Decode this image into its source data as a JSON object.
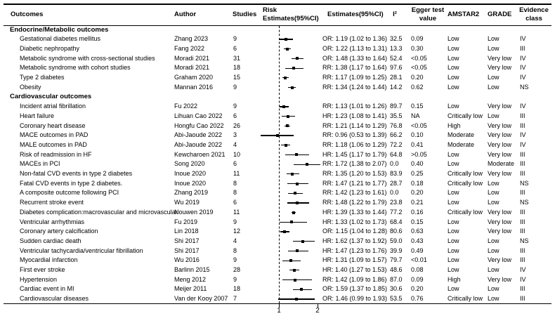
{
  "table": {
    "columns": {
      "outcomes": "Outcomes",
      "author": "Author",
      "studies": "Studies",
      "risk_line1": "Risk",
      "risk_line2": "Estimates(95%CI)",
      "estimates": "Estimates(95%CI)",
      "i2": "I²",
      "egger_line1": "Egger test",
      "egger_line2": "value",
      "amstar2": "AMSTAR2",
      "grade": "GRADE",
      "evidence_line1": "Evidence",
      "evidence_line2": "class"
    },
    "axis": {
      "tick_labels": [
        "1",
        "2"
      ],
      "tick_values": [
        1,
        2
      ],
      "reference_value": 1
    },
    "sections": [
      {
        "title": "Endocrine/Metabolic outcomes",
        "rows": [
          {
            "outcome": "Gestational diabetes mellitus",
            "author": "Zhang 2023",
            "studies": "9",
            "estimate": "OR: 1.19 (1.02 to 1.36)",
            "point": 1.19,
            "low": 1.02,
            "high": 1.36,
            "i2": "32.5",
            "egger": "0.09",
            "amstar2": "Low",
            "grade": "Low",
            "evidence_class": "IV"
          },
          {
            "outcome": "Diabetic nephropathy",
            "author": "Fang 2022",
            "studies": "6",
            "estimate": "OR: 1.22 (1.13 to 1.31)",
            "point": 1.22,
            "low": 1.13,
            "high": 1.31,
            "i2": "13.3",
            "egger": "0.30",
            "amstar2": "Low",
            "grade": "Low",
            "evidence_class": "III"
          },
          {
            "outcome": "Metabolic syndrome with cross-sectional studies",
            "author": "Moradi 2021",
            "studies": "31",
            "estimate": "OR: 1.48 (1.33 to 1.64)",
            "point": 1.48,
            "low": 1.33,
            "high": 1.64,
            "i2": "52.4",
            "egger": "<0.05",
            "amstar2": "Low",
            "grade": "Very low",
            "evidence_class": "IV"
          },
          {
            "outcome": "Metabolic syndrome with cohort studies",
            "author": "Moradi 2021",
            "studies": "18",
            "estimate": "RR: 1.38 (1.17 to 1.64)",
            "point": 1.38,
            "low": 1.17,
            "high": 1.64,
            "i2": "97.6",
            "egger": "<0.05",
            "amstar2": "Low",
            "grade": "Very low",
            "evidence_class": "IV"
          },
          {
            "outcome": "Type 2 diabetes",
            "author": "Graham 2020",
            "studies": "15",
            "estimate": "RR: 1.17 (1.09 to 1.25)",
            "point": 1.17,
            "low": 1.09,
            "high": 1.25,
            "i2": "28.1",
            "egger": "0.20",
            "amstar2": "Low",
            "grade": "Low",
            "evidence_class": "IV"
          },
          {
            "outcome": "Obesity",
            "author": "Mannan 2016",
            "studies": "9",
            "estimate": "RR: 1.34 (1.24 to 1.44)",
            "point": 1.34,
            "low": 1.24,
            "high": 1.44,
            "i2": "14.2",
            "egger": "0.62",
            "amstar2": "Low",
            "grade": "Low",
            "evidence_class": "NS"
          }
        ]
      },
      {
        "title": "Cardiovascular outcomes",
        "rows": [
          {
            "outcome": "Incident atrial fibrillation",
            "author": "Fu 2022",
            "studies": "9",
            "estimate": "RR: 1.13 (1.01 to 1.26)",
            "point": 1.13,
            "low": 1.01,
            "high": 1.26,
            "i2": "89.7",
            "egger": "0.15",
            "amstar2": "Low",
            "grade": "Very low",
            "evidence_class": "IV"
          },
          {
            "outcome": "Heart failure",
            "author": "Lihuan Cao 2022",
            "studies": "6",
            "estimate": "HR: 1.23 (1.08 to 1.41)",
            "point": 1.23,
            "low": 1.08,
            "high": 1.41,
            "i2": "35.5",
            "egger": "NA",
            "amstar2": "Critically low",
            "grade": "Low",
            "evidence_class": "III"
          },
          {
            "outcome": "Coronary heart disease",
            "author": "Hongfu Cao 2022",
            "studies": "26",
            "estimate": "RR: 1.21 (1.14 to 1.29)",
            "point": 1.21,
            "low": 1.14,
            "high": 1.29,
            "i2": "76.8",
            "egger": "<0.05",
            "amstar2": "High",
            "grade": "Very low",
            "evidence_class": "III"
          },
          {
            "outcome": "MACE outcomes in PAD",
            "author": "Abi-Jaoude 2022",
            "studies": "3",
            "estimate": "RR: 0.96 (0.53 to 1.39)",
            "point": 0.96,
            "low": 0.53,
            "high": 1.39,
            "i2": "66.2",
            "egger": "0.10",
            "amstar2": "Moderate",
            "grade": "Very low",
            "evidence_class": "IV"
          },
          {
            "outcome": "MALE outcomes in PAD",
            "author": "Abi-Jaoude 2022",
            "studies": "4",
            "estimate": "RR: 1.18 (1.06 to 1.29)",
            "point": 1.18,
            "low": 1.06,
            "high": 1.29,
            "i2": "72.2",
            "egger": "0.41",
            "amstar2": "Moderate",
            "grade": "Very low",
            "evidence_class": "IV"
          },
          {
            "outcome": "Risk of readmission in HF",
            "author": "Kewcharoen 2021",
            "studies": "10",
            "estimate": "HR: 1.45 (1.17 to 1.79)",
            "point": 1.45,
            "low": 1.17,
            "high": 1.79,
            "i2": "64.8",
            "egger": ">0.05",
            "amstar2": "Low",
            "grade": "Very low",
            "evidence_class": "III"
          },
          {
            "outcome": "MACEs in PCI",
            "author": "Song 2020",
            "studies": "6",
            "estimate": "RR: 1.72 (1.38 to 2.07)",
            "point": 1.72,
            "low": 1.38,
            "high": 2.07,
            "i2": "0.0",
            "egger": "0.40",
            "amstar2": "Low",
            "grade": "Moderate",
            "evidence_class": "III"
          },
          {
            "outcome": "Non-fatal CVD events in type 2 diabetes",
            "author": "Inoue 2020",
            "studies": "11",
            "estimate": "RR: 1.35 (1.20 to 1.53)",
            "point": 1.35,
            "low": 1.2,
            "high": 1.53,
            "i2": "83.9",
            "egger": "0.25",
            "amstar2": "Critically low",
            "grade": "Very low",
            "evidence_class": "III"
          },
          {
            "outcome": "Fatal CVD events in type 2 diabetes.",
            "author": "Inoue 2020",
            "studies": "8",
            "estimate": "RR: 1.47 (1.21 to 1.77)",
            "point": 1.47,
            "low": 1.21,
            "high": 1.77,
            "i2": "28.7",
            "egger": "0.18",
            "amstar2": "Critically low",
            "grade": "Low",
            "evidence_class": "NS"
          },
          {
            "outcome": "A composite outcome following PCI",
            "author": "Zhang 2019",
            "studies": "8",
            "estimate": "RR: 1.42 (1.23 to 1.61)",
            "point": 1.42,
            "low": 1.23,
            "high": 1.61,
            "i2": "0.0",
            "egger": "0.20",
            "amstar2": "Low",
            "grade": "Low",
            "evidence_class": "III"
          },
          {
            "outcome": "Recurrent stroke event",
            "author": "Wu 2019",
            "studies": "6",
            "estimate": "RR: 1.48 (1.22 to 1.79)",
            "point": 1.48,
            "low": 1.22,
            "high": 1.79,
            "i2": "23.8",
            "egger": "0.21",
            "amstar2": "Low",
            "grade": "Low",
            "evidence_class": "NS"
          },
          {
            "outcome": "Diabetes complication:macrovascular and microvascular",
            "author": "Nouwen 2019",
            "studies": "11",
            "estimate": "HR: 1.39 (1.33 to 1.44)",
            "point": 1.39,
            "low": 1.33,
            "high": 1.44,
            "i2": "77.2",
            "egger": "0.16",
            "amstar2": "Critically low",
            "grade": "Very low",
            "evidence_class": "III"
          },
          {
            "outcome": "Ventricular arrhythmias",
            "author": "Fu 2019",
            "studies": "9",
            "estimate": "HR: 1.33 (1.02 to 1.73)",
            "point": 1.33,
            "low": 1.02,
            "high": 1.73,
            "i2": "68.4",
            "egger": "0.15",
            "amstar2": "Low",
            "grade": "Very low",
            "evidence_class": "III"
          },
          {
            "outcome": "Coronary artery calcification",
            "author": "Lin 2018",
            "studies": "12",
            "estimate": "OR: 1.15 (1.04 to 1.28)",
            "point": 1.15,
            "low": 1.04,
            "high": 1.28,
            "i2": "80.6",
            "egger": "0.63",
            "amstar2": "Low",
            "grade": "Very low",
            "evidence_class": "III"
          },
          {
            "outcome": "Sudden cardiac death",
            "author": "Shi 2017",
            "studies": "4",
            "estimate": "HR: 1.62 (1.37 to 1.92)",
            "point": 1.62,
            "low": 1.37,
            "high": 1.92,
            "i2": "59.0",
            "egger": "0.43",
            "amstar2": "Low",
            "grade": "Low",
            "evidence_class": "NS"
          },
          {
            "outcome": "Ventricular tachycardia/ventricular fibrillation",
            "author": "Shi 2017",
            "studies": "8",
            "estimate": "HR: 1.47 (1.23 to 1.76)",
            "point": 1.47,
            "low": 1.23,
            "high": 1.76,
            "i2": "39.9",
            "egger": "0.49",
            "amstar2": "Low",
            "grade": "Low",
            "evidence_class": "III"
          },
          {
            "outcome": "Myocardial infarction",
            "author": "Wu 2016",
            "studies": "9",
            "estimate": "HR: 1.31 (1.09 to 1.57)",
            "point": 1.31,
            "low": 1.09,
            "high": 1.57,
            "i2": "79.7",
            "egger": "<0.01",
            "amstar2": "Low",
            "grade": "Very low",
            "evidence_class": "III"
          },
          {
            "outcome": "First ever stroke",
            "author": "Barlinn 2015",
            "studies": "28",
            "estimate": "HR: 1.40 (1.27 to 1.53)",
            "point": 1.4,
            "low": 1.27,
            "high": 1.53,
            "i2": "48.6",
            "egger": "0.08",
            "amstar2": "Low",
            "grade": "Low",
            "evidence_class": "IV"
          },
          {
            "outcome": "Hypertension",
            "author": "Meng 2012",
            "studies": "9",
            "estimate": "RR: 1.42 (1.09 to 1.86)",
            "point": 1.42,
            "low": 1.09,
            "high": 1.86,
            "i2": "87.0",
            "egger": "0.09",
            "amstar2": "High",
            "grade": "Very low",
            "evidence_class": "IV"
          },
          {
            "outcome": "Cardiac event in MI",
            "author": "Meijer 2011",
            "studies": "18",
            "estimate": "OR: 1.59 (1.37 to 1.85)",
            "point": 1.59,
            "low": 1.37,
            "high": 1.85,
            "i2": "30.6",
            "egger": "0.20",
            "amstar2": "Low",
            "grade": "Low",
            "evidence_class": "III"
          },
          {
            "outcome": "Cardiovascular diseases",
            "author": "Van der Kooy 2007",
            "studies": "7",
            "estimate": "OR: 1.46 (0.99 to 1.93)",
            "point": 1.46,
            "low": 0.99,
            "high": 1.93,
            "i2": "53.5",
            "egger": "0.76",
            "amstar2": "Critically low",
            "grade": "Low",
            "evidence_class": "III"
          }
        ]
      }
    ]
  },
  "chart_data": {
    "type": "scatter",
    "subtype": "forest-plot",
    "title": "Risk Estimates(95%CI)",
    "xlabel": "",
    "ylabel": "",
    "xlim": [
      0.45,
      2.15
    ],
    "x_ticks": [
      1,
      2
    ],
    "reference_line_x": 1,
    "grid": false,
    "legend_position": "none",
    "row_format": [
      "outcome",
      "point_estimate",
      "ci_low",
      "ci_high"
    ],
    "rows": [
      [
        "Gestational diabetes mellitus",
        1.19,
        1.02,
        1.36
      ],
      [
        "Diabetic nephropathy",
        1.22,
        1.13,
        1.31
      ],
      [
        "Metabolic syndrome with cross-sectional studies",
        1.48,
        1.33,
        1.64
      ],
      [
        "Metabolic syndrome with cohort studies",
        1.38,
        1.17,
        1.64
      ],
      [
        "Type 2 diabetes",
        1.17,
        1.09,
        1.25
      ],
      [
        "Obesity",
        1.34,
        1.24,
        1.44
      ],
      [
        "Incident atrial fibrillation",
        1.13,
        1.01,
        1.26
      ],
      [
        "Heart failure",
        1.23,
        1.08,
        1.41
      ],
      [
        "Coronary heart disease",
        1.21,
        1.14,
        1.29
      ],
      [
        "MACE outcomes in PAD",
        0.96,
        0.53,
        1.39
      ],
      [
        "MALE outcomes in PAD",
        1.18,
        1.06,
        1.29
      ],
      [
        "Risk of readmission in HF",
        1.45,
        1.17,
        1.79
      ],
      [
        "MACEs in PCI",
        1.72,
        1.38,
        2.07
      ],
      [
        "Non-fatal CVD events in type 2 diabetes",
        1.35,
        1.2,
        1.53
      ],
      [
        "Fatal CVD events in type 2 diabetes.",
        1.47,
        1.21,
        1.77
      ],
      [
        "A composite outcome following PCI",
        1.42,
        1.23,
        1.61
      ],
      [
        "Recurrent stroke event",
        1.48,
        1.22,
        1.79
      ],
      [
        "Diabetes complication:macrovascular and microvascular",
        1.39,
        1.33,
        1.44
      ],
      [
        "Ventricular arrhythmias",
        1.33,
        1.02,
        1.73
      ],
      [
        "Coronary artery calcification",
        1.15,
        1.04,
        1.28
      ],
      [
        "Sudden cardiac death",
        1.62,
        1.37,
        1.92
      ],
      [
        "Ventricular tachycardia/ventricular fibrillation",
        1.47,
        1.23,
        1.76
      ],
      [
        "Myocardial infarction",
        1.31,
        1.09,
        1.57
      ],
      [
        "First ever stroke",
        1.4,
        1.27,
        1.53
      ],
      [
        "Hypertension",
        1.42,
        1.09,
        1.86
      ],
      [
        "Cardiac event in MI",
        1.59,
        1.37,
        1.85
      ],
      [
        "Cardiovascular diseases",
        1.46,
        0.99,
        1.93
      ]
    ]
  },
  "colors": {
    "foreground": "#000000",
    "background": "#ffffff"
  }
}
